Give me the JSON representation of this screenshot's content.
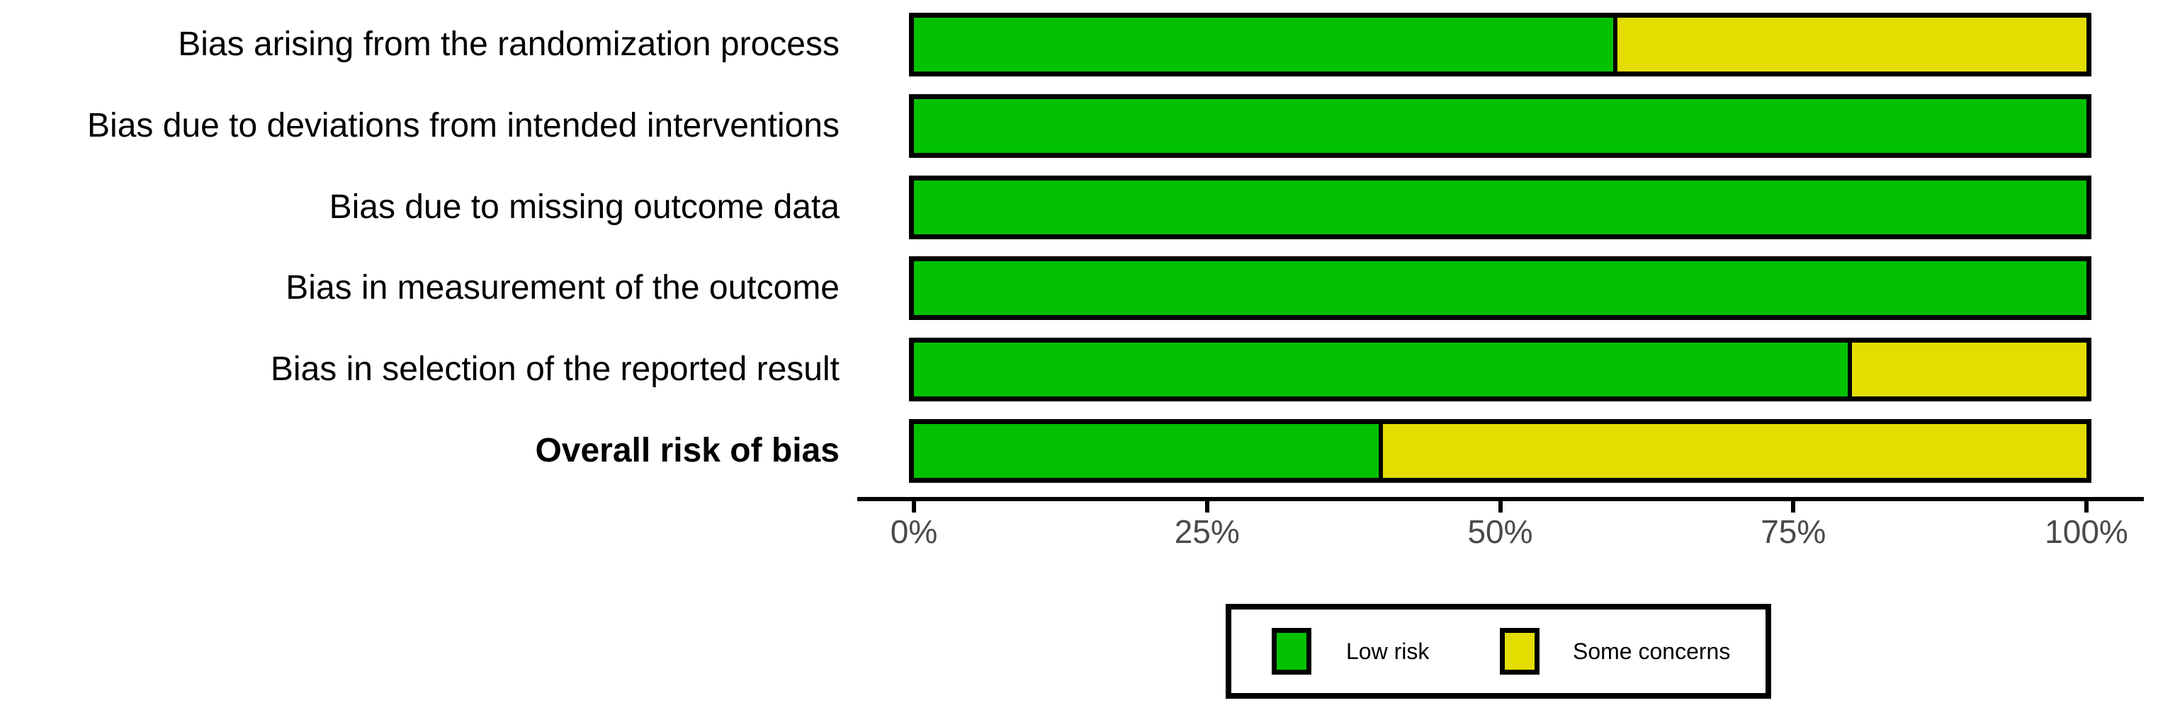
{
  "chart_data": {
    "type": "bar",
    "orientation": "horizontal",
    "stacked": true,
    "title": "",
    "xlabel": "",
    "ylabel": "",
    "xlim": [
      0,
      100
    ],
    "grid": false,
    "categories": [
      "Bias arising from the randomization process",
      "Bias due to deviations from intended interventions",
      "Bias due to missing outcome data",
      "Bias in measurement of the outcome",
      "Bias in selection of the reported result",
      "Overall risk of bias"
    ],
    "bold_categories": [
      "Overall risk of bias"
    ],
    "series": [
      {
        "name": "Low risk",
        "color": "#02C100",
        "values": [
          60,
          100,
          100,
          100,
          80,
          40
        ]
      },
      {
        "name": "Some concerns",
        "color": "#E3DD00",
        "values": [
          40,
          0,
          0,
          0,
          20,
          60
        ]
      }
    ],
    "x_ticks": [
      {
        "label": "0%",
        "value": 0
      },
      {
        "label": "25%",
        "value": 25
      },
      {
        "label": "50%",
        "value": 50
      },
      {
        "label": "75%",
        "value": 75
      },
      {
        "label": "100%",
        "value": 100
      }
    ],
    "legend": {
      "position": "bottom",
      "entries": [
        {
          "label": "Low risk",
          "color": "#02C100"
        },
        {
          "label": "Some concerns",
          "color": "#E3DD00"
        }
      ]
    },
    "colors": {
      "bar_border": "#000000",
      "axis_line": "#000000",
      "tick_label": "#4a4a4a",
      "background": "#ffffff"
    }
  }
}
